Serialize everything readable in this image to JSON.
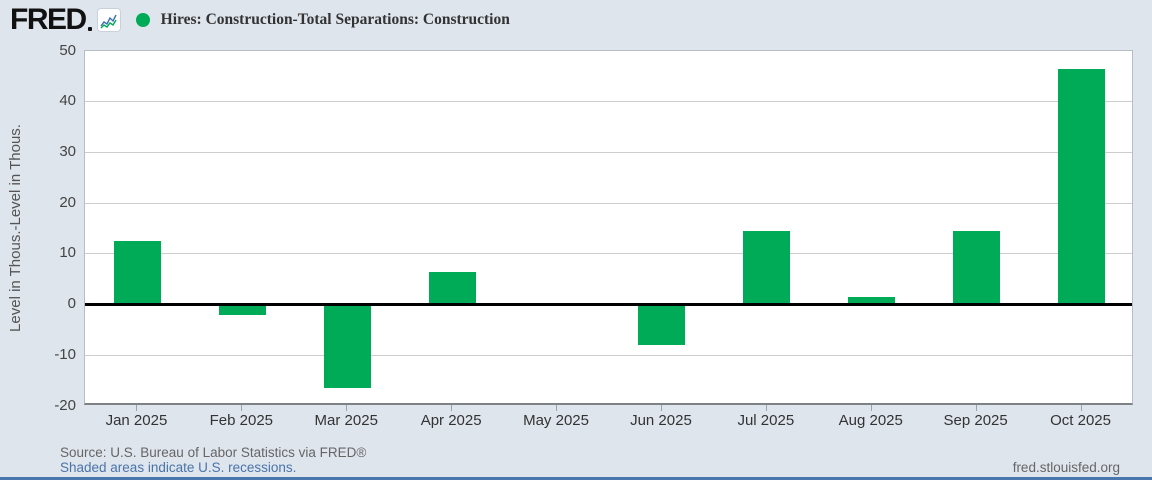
{
  "header": {
    "logo_text": "FRED",
    "title": "Hires: Construction-Total Separations: Construction"
  },
  "chart_data": {
    "type": "bar",
    "title": "Hires: Construction-Total Separations: Construction",
    "categories": [
      "Jan 2025",
      "Feb 2025",
      "Mar 2025",
      "Apr 2025",
      "May 2025",
      "Jun 2025",
      "Jul 2025",
      "Aug 2025",
      "Sep 2025",
      "Oct 2025"
    ],
    "values": [
      12.5,
      -2,
      -16.5,
      6.5,
      0,
      -8,
      14.5,
      1.5,
      14.5,
      46.5
    ],
    "xlabel": "",
    "ylabel": "Level in Thous.-Level in Thous.",
    "ylim": [
      -20,
      50
    ],
    "yticks": [
      50,
      40,
      30,
      20,
      10,
      0,
      -10,
      -20
    ],
    "bar_color": "#00ab57",
    "grid": true,
    "zero_line": true,
    "legend_position": "top-left"
  },
  "colors": {
    "series_green": "#00ab57",
    "background": "#dee5ed",
    "link_blue": "#4a74a8",
    "icon_line_blue": "#3c6fb1"
  },
  "footer": {
    "source": "Source: U.S. Bureau of Labor Statistics via FRED®",
    "recessions_note": "Shaded areas indicate U.S. recessions.",
    "site": "fred.stlouisfed.org"
  }
}
